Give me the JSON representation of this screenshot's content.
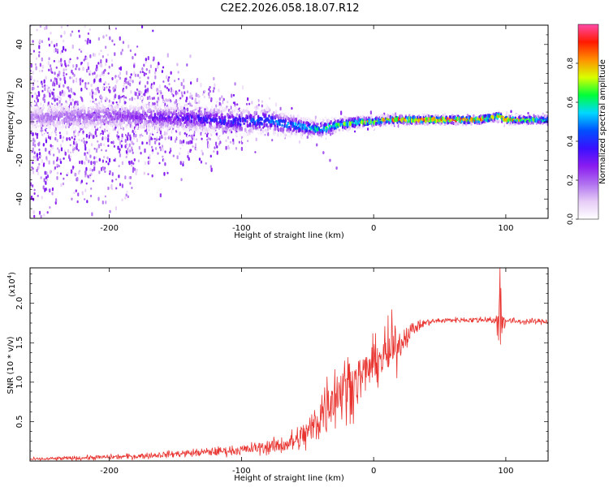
{
  "title": "C2E2.2026.058.18.07.R12",
  "colors": {
    "snr_line": "#e8332f",
    "frame": "#000000",
    "colormap": [
      "#ffffff",
      "#e6ccf7",
      "#b070f0",
      "#8a1cf0",
      "#3a10ff",
      "#0050ff",
      "#00d8ff",
      "#00ff3a",
      "#d8ff00",
      "#ff9000",
      "#ff1a00",
      "#ff4aa8"
    ]
  },
  "chart_data": [
    {
      "type": "heatmap",
      "title": "C2E2.2026.058.18.07.R12",
      "xlabel": "Height of straight line (km)",
      "ylabel": "Frequency (Hz)",
      "xlim": [
        -260,
        132
      ],
      "ylim": [
        -50,
        50
      ],
      "xticks": [
        -200,
        -100,
        0,
        100
      ],
      "xtick_labels": [
        "-200",
        "-100",
        "0",
        "100"
      ],
      "yticks": [
        -40,
        -20,
        0,
        20,
        40
      ],
      "ytick_labels": [
        "-40",
        "-20",
        "0",
        "20",
        "40"
      ],
      "colorbar": {
        "label": "Normalized spectral amplitude",
        "range": [
          0,
          1
        ],
        "ticks": [
          0.0,
          0.2,
          0.4,
          0.6,
          0.8
        ],
        "tick_labels": [
          "0.0",
          "0.2",
          "0.4",
          "0.6",
          "0.8"
        ]
      },
      "center_line": {
        "x": [
          -260,
          -200,
          -150,
          -120,
          -100,
          -80,
          -70,
          -60,
          -50,
          -40,
          -30,
          -20,
          -10,
          0,
          10,
          20,
          40,
          60,
          80,
          88,
          95,
          100,
          120,
          132
        ],
        "frequency_hz": [
          2,
          3,
          2,
          1,
          0,
          1,
          -1,
          -2,
          -3,
          -4,
          -2,
          -1,
          0,
          0,
          1,
          1,
          1,
          1,
          1,
          2,
          3,
          1,
          1,
          1
        ]
      },
      "amplitude_profile": {
        "x": [
          -260,
          -200,
          -150,
          -100,
          -70,
          -40,
          -20,
          0,
          20,
          40,
          80,
          90,
          95,
          100,
          132
        ],
        "peak_amplitude": [
          0.18,
          0.25,
          0.35,
          0.45,
          0.55,
          0.62,
          0.75,
          0.8,
          0.9,
          0.96,
          0.95,
          0.8,
          0.97,
          0.9,
          0.6
        ]
      },
      "spread_profile": {
        "x": [
          -260,
          -200,
          -150,
          -100,
          -80,
          -60,
          -40,
          -20,
          0,
          40,
          132
        ],
        "halfwidth_hz": [
          40,
          35,
          22,
          12,
          8,
          6,
          5,
          4,
          3,
          2.5,
          2.5
        ]
      },
      "annotation_streak": {
        "x": [
          -50,
          -43,
          -38,
          -33,
          -28
        ],
        "frequency_hz": [
          -8,
          -12,
          -16,
          -20,
          -24
        ]
      }
    },
    {
      "type": "line",
      "xlabel": "Height of straight line (km)",
      "ylabel": "SNR (10 * v/v)",
      "y_scale_label": "(x10",
      "y_scale_exponent": "4",
      "y_scale_close": ")",
      "xlim": [
        -260,
        132
      ],
      "ylim": [
        0,
        2.45
      ],
      "xticks": [
        -200,
        -100,
        0,
        100
      ],
      "xtick_labels": [
        "-200",
        "-100",
        "0",
        "100"
      ],
      "yticks": [
        0.5,
        1.0,
        1.5,
        2.0
      ],
      "ytick_labels": [
        "0.5",
        "1.0",
        "1.5",
        "2.0"
      ],
      "series": [
        {
          "name": "SNR",
          "x": [
            -260,
            -240,
            -220,
            -200,
            -180,
            -160,
            -140,
            -120,
            -100,
            -90,
            -80,
            -70,
            -60,
            -50,
            -45,
            -40,
            -35,
            -30,
            -25,
            -20,
            -15,
            -10,
            -5,
            0,
            5,
            10,
            15,
            20,
            25,
            30,
            35,
            40,
            50,
            60,
            70,
            80,
            88,
            92,
            95,
            97,
            100,
            110,
            120,
            132
          ],
          "y": [
            0.02,
            0.03,
            0.04,
            0.05,
            0.06,
            0.08,
            0.1,
            0.12,
            0.14,
            0.16,
            0.18,
            0.2,
            0.25,
            0.35,
            0.45,
            0.6,
            0.75,
            0.85,
            0.9,
            0.95,
            1.0,
            1.05,
            1.15,
            1.25,
            1.3,
            1.35,
            1.4,
            1.5,
            1.6,
            1.68,
            1.72,
            1.76,
            1.78,
            1.79,
            1.79,
            1.79,
            1.8,
            1.75,
            1.7,
            1.8,
            1.78,
            1.77,
            1.77,
            1.77
          ]
        }
      ],
      "noise_profile": {
        "x": [
          -260,
          -200,
          -150,
          -100,
          -70,
          -50,
          -40,
          -30,
          -20,
          -10,
          0,
          10,
          14,
          20,
          30,
          40,
          60,
          90,
          95,
          100,
          132
        ],
        "amplitude": [
          0.02,
          0.03,
          0.04,
          0.06,
          0.1,
          0.2,
          0.35,
          0.4,
          0.4,
          0.3,
          0.25,
          0.35,
          0.4,
          0.18,
          0.08,
          0.04,
          0.03,
          0.04,
          0.35,
          0.04,
          0.03
        ]
      }
    }
  ]
}
